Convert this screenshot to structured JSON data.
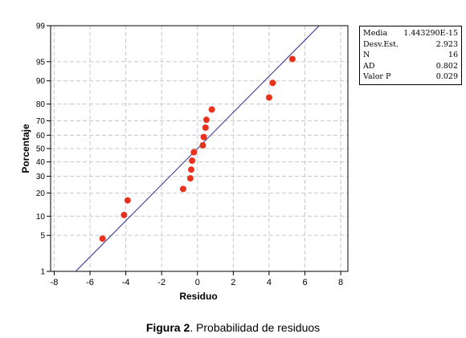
{
  "chart_data": {
    "type": "scatter",
    "title": "",
    "xlabel": "Residuo",
    "ylabel": "Porcentaje",
    "x_ticks": [
      -8,
      -6,
      -4,
      -2,
      0,
      2,
      4,
      6,
      8
    ],
    "y_ticks": [
      1,
      5,
      10,
      20,
      30,
      40,
      50,
      60,
      70,
      80,
      90,
      95,
      99
    ],
    "xlim": [
      -8.2,
      8.4
    ],
    "ylim_percent": [
      1,
      99
    ],
    "y_scale": "normal-probability",
    "grid": true,
    "points": [
      {
        "x": -5.3,
        "y": 4.4
      },
      {
        "x": -4.1,
        "y": 10.4
      },
      {
        "x": -3.9,
        "y": 16.3
      },
      {
        "x": -0.8,
        "y": 22.2
      },
      {
        "x": -0.4,
        "y": 28.6
      },
      {
        "x": -0.35,
        "y": 34.5
      },
      {
        "x": -0.3,
        "y": 40.9
      },
      {
        "x": -0.2,
        "y": 47.2
      },
      {
        "x": 0.3,
        "y": 52.4
      },
      {
        "x": 0.35,
        "y": 58.6
      },
      {
        "x": 0.45,
        "y": 65.4
      },
      {
        "x": 0.5,
        "y": 70.7
      },
      {
        "x": 0.8,
        "y": 77.0
      },
      {
        "x": 4.0,
        "y": 83.3
      },
      {
        "x": 4.2,
        "y": 89.3
      },
      {
        "x": 5.3,
        "y": 95.5
      }
    ],
    "fit_line": {
      "mean": 0,
      "sd": 2.923
    },
    "colors": {
      "points": "#e8321e",
      "line": "#2e2e8c",
      "grid": "#c8c8c8"
    }
  },
  "stats": [
    {
      "label": "Media",
      "value": "1.443290E-15"
    },
    {
      "label": "Desv.Est.",
      "value": "2.923"
    },
    {
      "label": "N",
      "value": "16"
    },
    {
      "label": "AD",
      "value": "0.802"
    },
    {
      "label": "Valor P",
      "value": "0.029"
    }
  ],
  "caption": {
    "bold": "Figura 2",
    "text": ". Probabilidad de residuos"
  }
}
